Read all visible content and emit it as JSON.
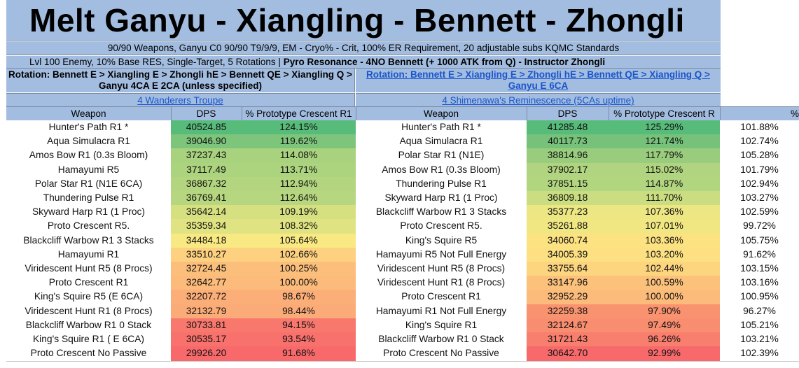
{
  "header": {
    "title": "Melt Ganyu - Xiangling - Bennett - Zhongli",
    "subtitle_1": "90/90 Weapons, Ganyu C0 90/90 T9/9/9, EM - Cryo% - Crit, 100% ER Requirement, 20 adjustable subs KQMC Standards",
    "subtitle_2_normal": "Lvl 100 Enemy, 10% Base RES, Single-Target, 5 Rotations | ",
    "subtitle_2_bold": "Pyro Resonance - 4NO Bennett (+ 1000 ATK from Q) - Instructor Zhongli"
  },
  "left": {
    "rotation": "Rotation: Bennett E > Xiangling E > Zhongli hE > Bennett QE > Xiangling Q > Ganyu 4CA E 2CA (unless specified)",
    "set": "4 Wanderers Troupe",
    "col_weapon": "Weapon",
    "col_dps": "DPS",
    "col_pct": "% Prototype Crescent R1",
    "rows": [
      {
        "weapon": "Hunter's Path R1 *",
        "dps": "40524.85",
        "pct": "124.15%",
        "color": "#57bb7a"
      },
      {
        "weapon": "Aqua Simulacra R1",
        "dps": "39046.90",
        "pct": "119.62%",
        "color": "#7ec57c"
      },
      {
        "weapon": "Amos Bow R1 (0.3s Bloom)",
        "dps": "37237.43",
        "pct": "114.08%",
        "color": "#a8d27e"
      },
      {
        "weapon": "Hamayumi R5",
        "dps": "37117.49",
        "pct": "113.71%",
        "color": "#acd37e"
      },
      {
        "weapon": "Polar Star R1 (N1E 6CA)",
        "dps": "36867.32",
        "pct": "112.94%",
        "color": "#b3d57f"
      },
      {
        "weapon": "Thundering Pulse R1",
        "dps": "36769.41",
        "pct": "112.64%",
        "color": "#b6d67f"
      },
      {
        "weapon": "Skyward Harp R1 (1 Proc)",
        "dps": "35642.14",
        "pct": "109.19%",
        "color": "#d6e081"
      },
      {
        "weapon": "Proto Crescent R5.",
        "dps": "35359.34",
        "pct": "108.32%",
        "color": "#e0e382"
      },
      {
        "weapon": "Blackcliff Warbow R1 3 Stacks",
        "dps": "34484.18",
        "pct": "105.64%",
        "color": "#f9e983"
      },
      {
        "weapon": "Hamayumi R1",
        "dps": "33510.27",
        "pct": "102.66%",
        "color": "#fdd17f"
      },
      {
        "weapon": "Viridescent Hunt R5 (8 Procs)",
        "dps": "32724.45",
        "pct": "100.25%",
        "color": "#fcbf7b"
      },
      {
        "weapon": "Proto Crescent R1",
        "dps": "32642.77",
        "pct": "100.00%",
        "color": "#fcbb7a"
      },
      {
        "weapon": "King's Squire R5 (E 6CA)",
        "dps": "32207.72",
        "pct": "98.67%",
        "color": "#fbae78"
      },
      {
        "weapon": "Viridescent Hunt R1 (8 Procs)",
        "dps": "32132.79",
        "pct": "98.44%",
        "color": "#fbab77"
      },
      {
        "weapon": "Blackcliff Warbow R1 0 Stack",
        "dps": "30733.81",
        "pct": "94.15%",
        "color": "#f8786e"
      },
      {
        "weapon": "King's Squire R1 ( E 6CA)",
        "dps": "30535.17",
        "pct": "93.54%",
        "color": "#f8716c"
      },
      {
        "weapon": "Proto Crescent No Passive",
        "dps": "29926.20",
        "pct": "91.68%",
        "color": "#f8696b"
      }
    ]
  },
  "right": {
    "rotation": "Rotation: Bennett E > Xiangling E > Zhongli hE > Bennett QE > Xiangling Q > Ganyu E 6CA",
    "set": "4 Shimenawa's Reminescence (5CAs uptime)",
    "col_weapon": "Weapon",
    "col_dps": "DPS",
    "col_pct": "% Prototype Crescent R",
    "col_extra": "%",
    "rows": [
      {
        "weapon": "Hunter's Path R1 *",
        "dps": "41285.48",
        "pct": "125.29%",
        "extra": "101.88%",
        "color": "#57bb7a"
      },
      {
        "weapon": "Aqua Simulacra R1",
        "dps": "40117.73",
        "pct": "121.74%",
        "extra": "102.74%",
        "color": "#76c27b"
      },
      {
        "weapon": "Polar Star R1 (N1E)",
        "dps": "38814.96",
        "pct": "117.79%",
        "extra": "105.28%",
        "color": "#99cd7d"
      },
      {
        "weapon": "Amos Bow R1 (0.3s Bloom)",
        "dps": "37902.17",
        "pct": "115.02%",
        "extra": "101.79%",
        "color": "#b0d47f"
      },
      {
        "weapon": "Thundering Pulse R1",
        "dps": "37851.15",
        "pct": "114.87%",
        "extra": "102.94%",
        "color": "#b2d57f"
      },
      {
        "weapon": "Skyward Harp R1 (1 Proc)",
        "dps": "36809.18",
        "pct": "111.70%",
        "extra": "103.27%",
        "color": "#cadd80"
      },
      {
        "weapon": "Blackcliff Warbow R1 3 Stacks",
        "dps": "35377.23",
        "pct": "107.36%",
        "extra": "102.59%",
        "color": "#ece683"
      },
      {
        "weapon": "Proto Crescent R5.",
        "dps": "35261.88",
        "pct": "107.01%",
        "extra": "99.72%",
        "color": "#f0e783"
      },
      {
        "weapon": "King's Squire R5",
        "dps": "34060.74",
        "pct": "103.36%",
        "extra": "105.75%",
        "color": "#fde281"
      },
      {
        "weapon": "Hamayumi R5 Not Full Energy",
        "dps": "34005.39",
        "pct": "103.20%",
        "extra": "91.62%",
        "color": "#fde081"
      },
      {
        "weapon": "Viridescent Hunt R5 (8 Procs)",
        "dps": "33755.64",
        "pct": "102.44%",
        "extra": "103.15%",
        "color": "#fdd57f"
      },
      {
        "weapon": "Viridescent Hunt R1 (8 Procs)",
        "dps": "33147.96",
        "pct": "100.59%",
        "extra": "103.16%",
        "color": "#fcc27c"
      },
      {
        "weapon": "Proto Crescent R1",
        "dps": "32952.29",
        "pct": "100.00%",
        "extra": "100.95%",
        "color": "#fcbb7a"
      },
      {
        "weapon": "Hamayumi R1 Not Full Energy",
        "dps": "32259.38",
        "pct": "97.90%",
        "extra": "96.27%",
        "color": "#f9936f"
      },
      {
        "weapon": "King's Squire R1",
        "dps": "32124.67",
        "pct": "97.49%",
        "extra": "105.21%",
        "color": "#f98d6f"
      },
      {
        "weapon": "Blackcliff Warbow R1 0 Stack",
        "dps": "31721.43",
        "pct": "96.26%",
        "extra": "103.21%",
        "color": "#f87e6d"
      },
      {
        "weapon": "Proto Crescent No Passive",
        "dps": "30642.70",
        "pct": "92.99%",
        "extra": "102.39%",
        "color": "#f8696b"
      }
    ]
  }
}
